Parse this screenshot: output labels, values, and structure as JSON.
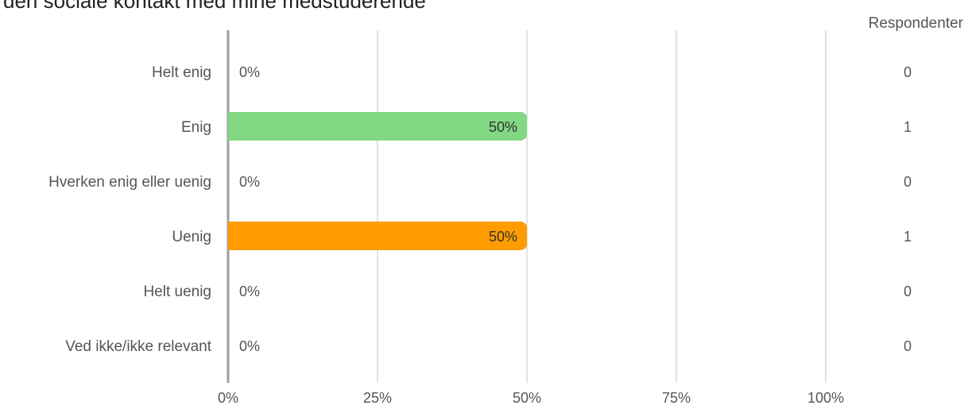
{
  "chart_data": {
    "type": "bar",
    "orientation": "horizontal",
    "title": "den sociale kontakt med mine medstuderende",
    "categories": [
      "Helt enig",
      "Enig",
      "Hverken enig eller uenig",
      "Uenig",
      "Helt uenig",
      "Ved ikke/ikke relevant"
    ],
    "values": [
      0,
      50,
      0,
      50,
      0,
      0
    ],
    "value_labels": [
      "0%",
      "50%",
      "0%",
      "50%",
      "0%",
      "0%"
    ],
    "colors": [
      "#82d882",
      "#82d882",
      "#cccccc",
      "#ff9c00",
      "#e06040",
      "#999999"
    ],
    "xlim": [
      0,
      100
    ],
    "x_ticks": [
      "0%",
      "25%",
      "50%",
      "75%",
      "100%"
    ],
    "grid": true,
    "respondents_header": "Respondenter",
    "respondents": [
      "0",
      "1",
      "0",
      "1",
      "0",
      "0"
    ]
  }
}
